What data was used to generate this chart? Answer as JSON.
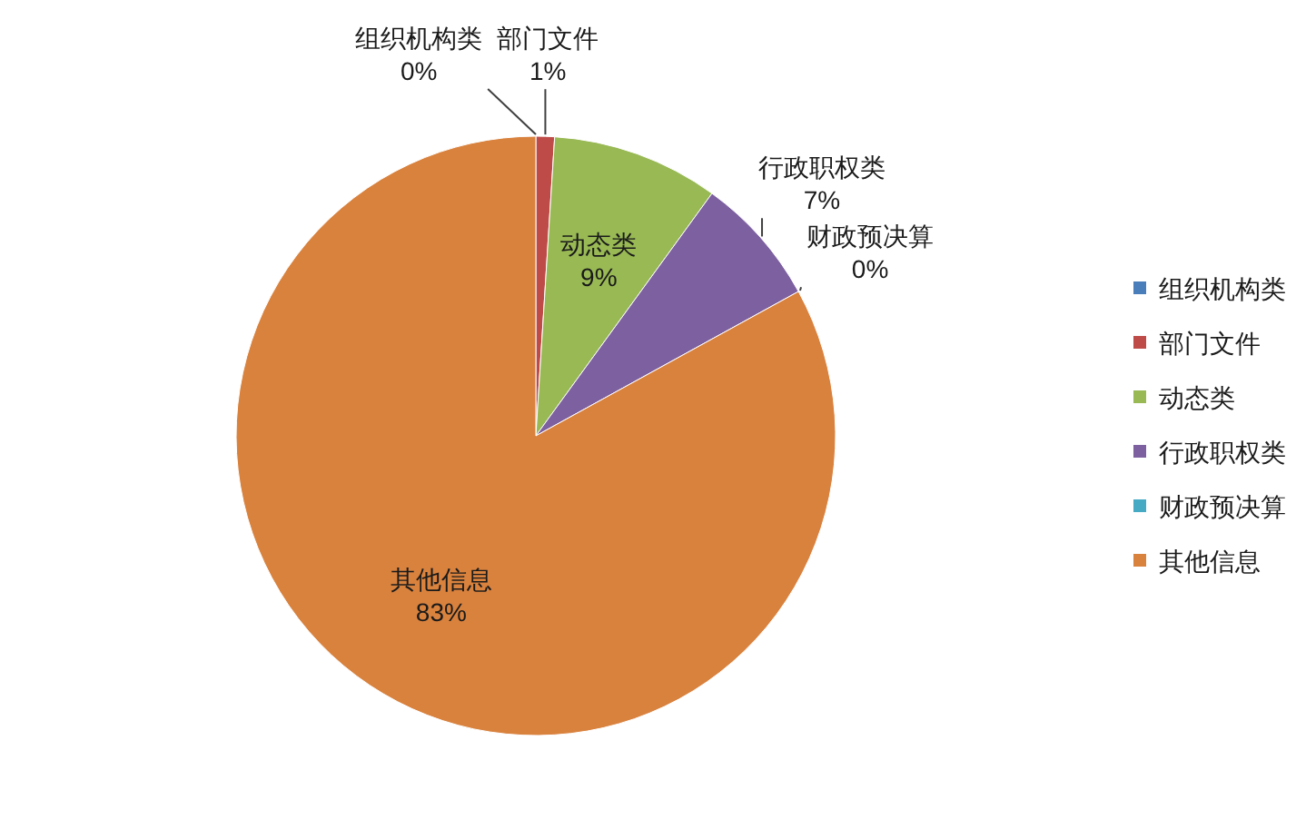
{
  "chart_data": {
    "type": "pie",
    "categories": [
      "组织机构类",
      "部门文件",
      "动态类",
      "行政职权类",
      "财政预决算",
      "其他信息"
    ],
    "values": [
      0,
      1,
      9,
      7,
      0,
      83
    ],
    "value_labels": [
      "0%",
      "1%",
      "9%",
      "7%",
      "0%",
      "83%"
    ],
    "colors": [
      "#4a7ebb",
      "#be4b48",
      "#98b954",
      "#7d60a0",
      "#46aac5",
      "#d9823e"
    ],
    "legend": "right"
  }
}
